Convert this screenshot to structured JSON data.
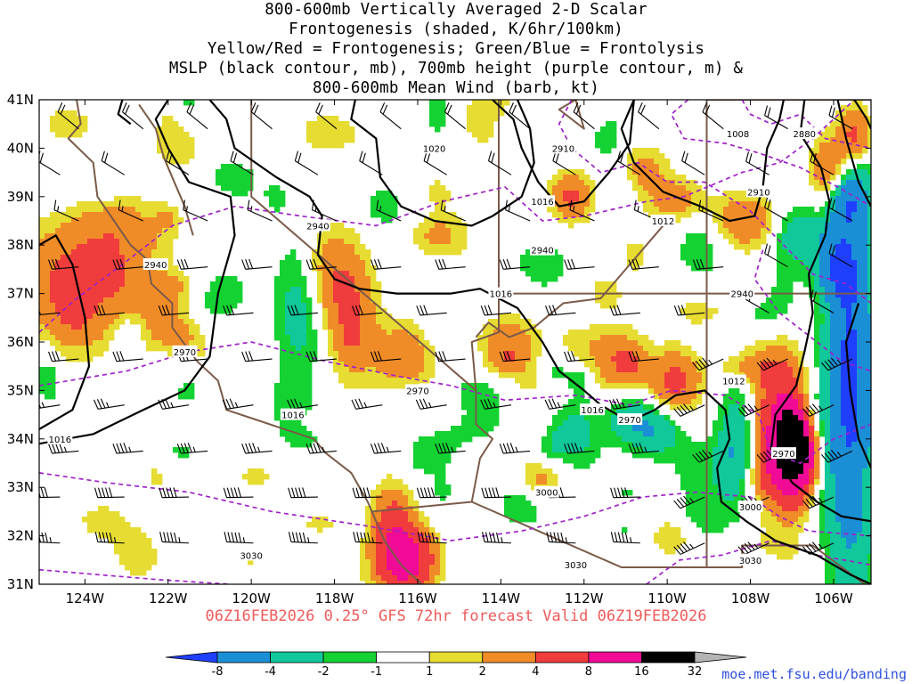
{
  "title": {
    "line1": "800-600mb Vertically Averaged 2-D Scalar",
    "line2": "Frontogenesis (shaded, K/6hr/100km)",
    "line3": "Yellow/Red = Frontogenesis;  Green/Blue = Frontolysis",
    "line4": "MSLP (black contour, mb), 700mb height (purple contour, m) &",
    "line5": "800-600mb Mean Wind (barb, kt)"
  },
  "valid_line": "06Z16FEB2026 0.25° GFS 72hr forecast Valid 06Z19FEB2026",
  "credit": "moe.met.fsu.edu/banding",
  "axes": {
    "x_ticks": [
      {
        "lon": -124,
        "label": "124W"
      },
      {
        "lon": -122,
        "label": "122W"
      },
      {
        "lon": -120,
        "label": "120W"
      },
      {
        "lon": -118,
        "label": "118W"
      },
      {
        "lon": -116,
        "label": "116W"
      },
      {
        "lon": -114,
        "label": "114W"
      },
      {
        "lon": -112,
        "label": "112W"
      },
      {
        "lon": -110,
        "label": "110W"
      },
      {
        "lon": -108,
        "label": "108W"
      },
      {
        "lon": -106,
        "label": "106W"
      }
    ],
    "y_ticks": [
      {
        "lat": 41,
        "label": "41N"
      },
      {
        "lat": 40,
        "label": "40N"
      },
      {
        "lat": 39,
        "label": "39N"
      },
      {
        "lat": 38,
        "label": "38N"
      },
      {
        "lat": 37,
        "label": "37N"
      },
      {
        "lat": 36,
        "label": "36N"
      },
      {
        "lat": 35,
        "label": "35N"
      },
      {
        "lat": 34,
        "label": "34N"
      },
      {
        "lat": 33,
        "label": "33N"
      },
      {
        "lat": 32,
        "label": "32N"
      },
      {
        "lat": 31,
        "label": "31N"
      }
    ],
    "lon_range": [
      -125.1,
      -105.1
    ],
    "lat_range": [
      31,
      41
    ]
  },
  "colorbar": {
    "labels": [
      "-8",
      "-4",
      "-2",
      "-1",
      "1",
      "2",
      "4",
      "8",
      "16",
      "32"
    ],
    "colors": [
      "#1f3fff",
      "#1a8fd6",
      "#10c89a",
      "#14d232",
      "#ffffff",
      "#e6dc32",
      "#f08c28",
      "#f03c3c",
      "#f00a96",
      "#000000",
      "#b4b4b4"
    ]
  },
  "map_colors": {
    "frame": "#000000",
    "mslp": "#000000",
    "height": "#a020c8",
    "borders": "#7a5a48",
    "barbs": "#000000"
  },
  "mslp_labels": [
    "1020",
    "1016",
    "1016",
    "1016",
    "1016",
    "1016",
    "1012",
    "1012",
    "1008"
  ],
  "height_labels": [
    "2910",
    "2880",
    "2910",
    "2940",
    "2940",
    "2940",
    "2940",
    "2970",
    "2970",
    "2970",
    "2970",
    "3000",
    "3000",
    "3030",
    "3030",
    "3030"
  ]
}
